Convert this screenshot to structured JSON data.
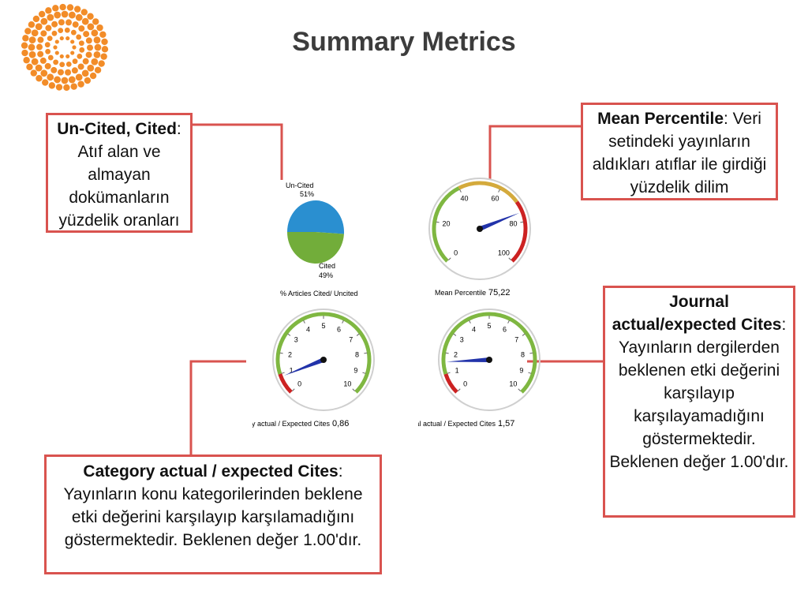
{
  "title": "Summary Metrics",
  "callouts": {
    "uncited": {
      "bold": "Un-Cited, Cited",
      "text": ": Atıf alan ve almayan dokümanların yüzdelik oranları"
    },
    "mean_percentile": {
      "bold": "Mean Percentile",
      "text": ": Veri setindeki yayınların aldıkları atıflar ile girdiği yüzdelik dilim"
    },
    "journal": {
      "bold": "Journal actual/expected Cites",
      "text": ": Yayınların dergilerden beklenen etki değerini karşılayıp karşılayamadığını göstermektedir. Beklenen değer 1.00'dır."
    },
    "category": {
      "bold": "Category actual / expected Cites",
      "text": ": Yayınların konu kategorilerinden beklene etki değerini karşılayıp karşılamadığını göstermektedir. Beklenen değer 1.00'dır."
    }
  },
  "chart_data": [
    {
      "type": "pie",
      "labels": [
        "Un-Cited",
        "Cited"
      ],
      "values": [
        51,
        49
      ],
      "value_labels": [
        "51%",
        "49%"
      ],
      "colors": [
        "#2a8fd0",
        "#72ad3a"
      ],
      "caption": "% Articles Cited/ Uncited"
    },
    {
      "type": "gauge",
      "caption": "Mean Percentile",
      "value_text": "75,22",
      "value": 75.22,
      "min": 0,
      "max": 100,
      "ticks": [
        "0",
        "20",
        "40",
        "60",
        "80",
        "100"
      ],
      "bands": [
        {
          "from": 0,
          "to": 40,
          "color": "#7fb741"
        },
        {
          "from": 40,
          "to": 70,
          "color": "#d4aa3c"
        },
        {
          "from": 70,
          "to": 100,
          "color": "#cc2222"
        }
      ]
    },
    {
      "type": "gauge",
      "caption": "Category actual / Expected Cites",
      "value_text": "0,86",
      "value": 0.86,
      "min": 0,
      "max": 10,
      "ticks": [
        "0",
        "1",
        "2",
        "3",
        "4",
        "5",
        "6",
        "7",
        "8",
        "9",
        "10"
      ],
      "bands": [
        {
          "from": 0,
          "to": 1,
          "color": "#cc2222"
        },
        {
          "from": 1,
          "to": 10,
          "color": "#7fb741"
        }
      ]
    },
    {
      "type": "gauge",
      "caption": "Journal actual / Expected Cites",
      "value_text": "1,57",
      "value": 1.57,
      "min": 0,
      "max": 10,
      "ticks": [
        "0",
        "1",
        "2",
        "3",
        "4",
        "5",
        "6",
        "7",
        "8",
        "9",
        "10"
      ],
      "bands": [
        {
          "from": 0,
          "to": 1,
          "color": "#cc2222"
        },
        {
          "from": 1,
          "to": 10,
          "color": "#7fb741"
        }
      ]
    }
  ],
  "colors": {
    "callout_border": "#d9534f",
    "logo": "#f28c28",
    "needle": "#2233aa"
  }
}
